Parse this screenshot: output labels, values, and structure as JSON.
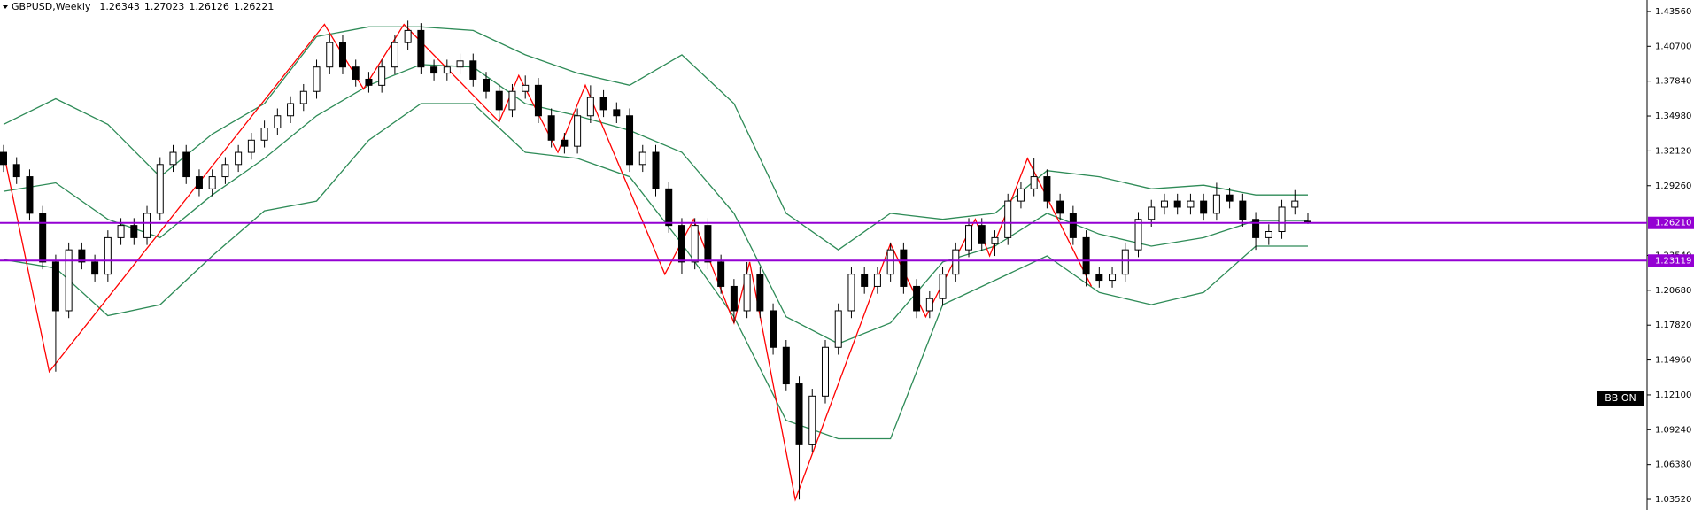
{
  "chart_data": {
    "type": "candlestick",
    "title": "GBPUSD,Weekly",
    "open": [
      1.32,
      1.31,
      1.3,
      1.27,
      1.23,
      1.19,
      1.24,
      1.23,
      1.22,
      1.25,
      1.26,
      1.25,
      1.27,
      1.31,
      1.32,
      1.3,
      1.29,
      1.3,
      1.31,
      1.32,
      1.33,
      1.34,
      1.35,
      1.36,
      1.37,
      1.39,
      1.41,
      1.39,
      1.38,
      1.375,
      1.39,
      1.41,
      1.42,
      1.39,
      1.385,
      1.39,
      1.395,
      1.38,
      1.37,
      1.355,
      1.37,
      1.375,
      1.35,
      1.33,
      1.325,
      1.35,
      1.365,
      1.355,
      1.35,
      1.31,
      1.32,
      1.29,
      1.26,
      1.23,
      1.26,
      1.23,
      1.21,
      1.19,
      1.22,
      1.19,
      1.16,
      1.13,
      1.08,
      1.12,
      1.16,
      1.19,
      1.22,
      1.21,
      1.22,
      1.24,
      1.21,
      1.19,
      1.2,
      1.22,
      1.24,
      1.26,
      1.245,
      1.25,
      1.28,
      1.29,
      1.3,
      1.28,
      1.27,
      1.25,
      1.22,
      1.215,
      1.22,
      1.24,
      1.265,
      1.275,
      1.28,
      1.275,
      1.28,
      1.27,
      1.285,
      1.28,
      1.265,
      1.25,
      1.255,
      1.275,
      1.26343
    ],
    "high": [
      1.326,
      1.316,
      1.306,
      1.276,
      1.236,
      1.246,
      1.246,
      1.236,
      1.256,
      1.266,
      1.266,
      1.276,
      1.316,
      1.326,
      1.326,
      1.306,
      1.306,
      1.316,
      1.326,
      1.336,
      1.346,
      1.356,
      1.366,
      1.376,
      1.396,
      1.416,
      1.416,
      1.396,
      1.386,
      1.396,
      1.416,
      1.428,
      1.426,
      1.396,
      1.396,
      1.401,
      1.401,
      1.386,
      1.376,
      1.376,
      1.383,
      1.381,
      1.356,
      1.336,
      1.356,
      1.375,
      1.371,
      1.361,
      1.356,
      1.326,
      1.326,
      1.296,
      1.266,
      1.266,
      1.266,
      1.236,
      1.216,
      1.23,
      1.226,
      1.196,
      1.166,
      1.136,
      1.126,
      1.166,
      1.196,
      1.226,
      1.226,
      1.226,
      1.246,
      1.246,
      1.216,
      1.206,
      1.226,
      1.246,
      1.266,
      1.266,
      1.256,
      1.286,
      1.296,
      1.315,
      1.306,
      1.286,
      1.276,
      1.256,
      1.226,
      1.226,
      1.246,
      1.271,
      1.281,
      1.286,
      1.286,
      1.286,
      1.286,
      1.295,
      1.291,
      1.286,
      1.271,
      1.261,
      1.281,
      1.289,
      1.27023
    ],
    "low": [
      1.304,
      1.294,
      1.264,
      1.224,
      1.14,
      1.184,
      1.224,
      1.214,
      1.214,
      1.244,
      1.244,
      1.244,
      1.264,
      1.304,
      1.294,
      1.284,
      1.284,
      1.294,
      1.304,
      1.314,
      1.324,
      1.334,
      1.344,
      1.354,
      1.364,
      1.384,
      1.384,
      1.374,
      1.369,
      1.369,
      1.384,
      1.404,
      1.384,
      1.379,
      1.379,
      1.384,
      1.374,
      1.364,
      1.345,
      1.349,
      1.364,
      1.344,
      1.324,
      1.319,
      1.319,
      1.344,
      1.349,
      1.344,
      1.304,
      1.304,
      1.284,
      1.254,
      1.22,
      1.224,
      1.224,
      1.204,
      1.18,
      1.184,
      1.184,
      1.154,
      1.124,
      1.035,
      1.074,
      1.114,
      1.154,
      1.184,
      1.204,
      1.204,
      1.214,
      1.204,
      1.184,
      1.184,
      1.194,
      1.214,
      1.234,
      1.239,
      1.235,
      1.244,
      1.274,
      1.284,
      1.274,
      1.264,
      1.244,
      1.21,
      1.209,
      1.209,
      1.214,
      1.234,
      1.259,
      1.269,
      1.269,
      1.269,
      1.264,
      1.264,
      1.274,
      1.259,
      1.24,
      1.244,
      1.249,
      1.269,
      1.26126
    ],
    "close": [
      1.31,
      1.3,
      1.27,
      1.23,
      1.19,
      1.24,
      1.23,
      1.22,
      1.25,
      1.26,
      1.25,
      1.27,
      1.31,
      1.32,
      1.3,
      1.29,
      1.3,
      1.31,
      1.32,
      1.33,
      1.34,
      1.35,
      1.36,
      1.37,
      1.39,
      1.41,
      1.39,
      1.38,
      1.375,
      1.39,
      1.41,
      1.42,
      1.39,
      1.385,
      1.39,
      1.395,
      1.38,
      1.37,
      1.355,
      1.37,
      1.375,
      1.35,
      1.33,
      1.325,
      1.35,
      1.365,
      1.355,
      1.35,
      1.31,
      1.32,
      1.29,
      1.26,
      1.23,
      1.26,
      1.23,
      1.21,
      1.19,
      1.22,
      1.19,
      1.16,
      1.13,
      1.08,
      1.12,
      1.16,
      1.19,
      1.22,
      1.21,
      1.22,
      1.24,
      1.21,
      1.19,
      1.2,
      1.22,
      1.24,
      1.26,
      1.245,
      1.25,
      1.28,
      1.29,
      1.3,
      1.28,
      1.27,
      1.25,
      1.22,
      1.215,
      1.22,
      1.24,
      1.265,
      1.275,
      1.28,
      1.275,
      1.28,
      1.27,
      1.285,
      1.28,
      1.265,
      1.25,
      1.255,
      1.275,
      1.28,
      1.26221
    ],
    "up_color": "#ffffff",
    "down_color": "#000000",
    "bands": {
      "color": "#2e8b57",
      "x": [
        0,
        4,
        8,
        12,
        16,
        20,
        24,
        28,
        32,
        36,
        40,
        44,
        48,
        52,
        56,
        60,
        64,
        68,
        72,
        76,
        80,
        84,
        88,
        92,
        96,
        100
      ],
      "upper": [
        1.343,
        1.364,
        1.343,
        1.3,
        1.335,
        1.36,
        1.415,
        1.423,
        1.423,
        1.42,
        1.4,
        1.385,
        1.375,
        1.4,
        1.36,
        1.27,
        1.24,
        1.27,
        1.265,
        1.27,
        1.305,
        1.3,
        1.29,
        1.293,
        1.285,
        1.285
      ],
      "middle": [
        1.288,
        1.295,
        1.265,
        1.25,
        1.285,
        1.315,
        1.35,
        1.375,
        1.392,
        1.39,
        1.36,
        1.35,
        1.338,
        1.32,
        1.27,
        1.185,
        1.163,
        1.18,
        1.23,
        1.243,
        1.27,
        1.253,
        1.243,
        1.25,
        1.264,
        1.264
      ],
      "lower": [
        1.232,
        1.225,
        1.186,
        1.195,
        1.235,
        1.272,
        1.28,
        1.33,
        1.36,
        1.36,
        1.32,
        1.315,
        1.3,
        1.245,
        1.185,
        1.1,
        1.085,
        1.085,
        1.195,
        1.215,
        1.235,
        1.205,
        1.195,
        1.205,
        1.243,
        1.243
      ]
    },
    "zigzag": {
      "color": "#ff0000",
      "x": [
        0,
        3.5,
        24.6,
        27.6,
        30.7,
        38,
        39.5,
        42.5,
        44.6,
        50.7,
        52.9,
        56,
        57.2,
        60.7,
        68,
        70.7,
        74.5,
        75.6,
        78.5,
        83.4
      ],
      "values": [
        1.32,
        1.14,
        1.425,
        1.372,
        1.425,
        1.345,
        1.383,
        1.32,
        1.375,
        1.22,
        1.265,
        1.18,
        1.23,
        1.035,
        1.245,
        1.185,
        1.265,
        1.235,
        1.315,
        1.21
      ]
    },
    "levels": [
      {
        "value": 1.2621,
        "label": "1.26210"
      },
      {
        "value": 1.23119,
        "label": "1.23119"
      }
    ],
    "level_color": "#9400d3",
    "ylim": [
      1.0265,
      1.445
    ],
    "yticks": [
      {
        "value": 1.4356,
        "label": "1.43560"
      },
      {
        "value": 1.407,
        "label": "1.40700"
      },
      {
        "value": 1.3784,
        "label": "1.37840"
      },
      {
        "value": 1.3498,
        "label": "1.34980"
      },
      {
        "value": 1.3212,
        "label": "1.32120"
      },
      {
        "value": 1.2926,
        "label": "1.29260"
      },
      {
        "value": 1.2354,
        "label": "1.23540"
      },
      {
        "value": 1.2068,
        "label": "1.20680"
      },
      {
        "value": 1.1782,
        "label": "1.17820"
      },
      {
        "value": 1.1496,
        "label": "1.14960"
      },
      {
        "value": 1.121,
        "label": "1.12100"
      },
      {
        "value": 1.0924,
        "label": "1.09240"
      },
      {
        "value": 1.0638,
        "label": "1.06380"
      },
      {
        "value": 1.0352,
        "label": "1.03520"
      }
    ],
    "badge": "BB ON"
  }
}
